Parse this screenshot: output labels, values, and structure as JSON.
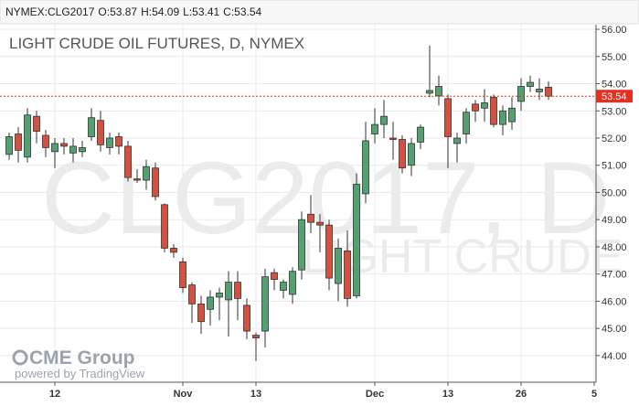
{
  "chart_data": {
    "type": "candlestick",
    "header": {
      "symbol": "NYMEX:CLG2017",
      "ohlc": [
        {
          "label": "O:",
          "value": 53.87
        },
        {
          "label": "H:",
          "value": 54.09
        },
        {
          "label": "L:",
          "value": 53.41
        },
        {
          "label": "C:",
          "value": 53.54
        }
      ]
    },
    "title": "LIGHT CRUDE OIL FUTURES, D, NYMEX",
    "watermark": [
      "CLG2017, D",
      "LIGHT CRUDE"
    ],
    "branding": [
      "CME Group",
      "powered by TradingView"
    ],
    "up_color": "#53a071",
    "down_color": "#d5503e",
    "xlim": [
      -1,
      64.2
    ],
    "xticks": [
      {
        "value": 5,
        "label": "12"
      },
      {
        "value": 19,
        "label": "Nov"
      },
      {
        "value": 27,
        "label": "13"
      },
      {
        "value": 40,
        "label": "Dec"
      },
      {
        "value": 48,
        "label": "13"
      },
      {
        "value": 56,
        "label": "26"
      },
      {
        "value": 64,
        "label": "5"
      }
    ],
    "ylim": [
      43.02,
      56.17
    ],
    "yticks": [
      {
        "value": 44,
        "label": "44.00"
      },
      {
        "value": 45,
        "label": "45.00"
      },
      {
        "value": 46,
        "label": "46.00"
      },
      {
        "value": 47,
        "label": "47.00"
      },
      {
        "value": 48,
        "label": "48.00"
      },
      {
        "value": 49,
        "label": "49.00"
      },
      {
        "value": 50,
        "label": "50.00"
      },
      {
        "value": 51,
        "label": "51.00"
      },
      {
        "value": 52,
        "label": "52.00"
      },
      {
        "value": 53,
        "label": "53.00"
      },
      {
        "value": 54,
        "label": "54.00"
      },
      {
        "value": 55,
        "label": "55.00"
      },
      {
        "value": 56,
        "label": "56.00"
      }
    ],
    "grid": true,
    "last_price": 53.54,
    "last_price_color": "#e0301e",
    "series": [
      {
        "open": [
          51.4,
          52.15,
          51.3,
          52.8,
          52.1,
          51.5,
          51.8,
          51.45,
          51.5,
          52.05,
          52.65,
          51.65,
          52.05,
          51.7,
          50.5,
          50.45,
          50.9,
          49.55,
          47.95,
          47.45,
          46.6,
          45.9,
          45.7,
          46.15,
          46.05,
          46.7,
          45.85,
          44.75,
          44.9,
          47.05,
          46.4,
          46.25,
          47.15,
          49.2,
          48.9,
          48.8,
          46.65,
          47.85,
          46.2,
          49.95,
          52.15,
          52.5,
          52.0,
          51.95,
          51.0,
          51.85,
          53.65,
          53.55,
          53.45,
          51.8,
          52.15,
          53.25,
          53.1,
          53.5,
          52.5,
          52.6,
          53.35,
          53.9,
          53.7,
          53.87
        ],
        "high": [
          52.2,
          52.4,
          53.1,
          53.0,
          52.3,
          52.0,
          52.0,
          52.0,
          51.9,
          53.1,
          53.0,
          52.2,
          52.2,
          51.9,
          50.85,
          51.2,
          51.1,
          49.6,
          48.1,
          47.6,
          46.7,
          46.2,
          46.4,
          46.5,
          47.1,
          47.1,
          46.1,
          44.85,
          47.2,
          47.2,
          46.8,
          47.25,
          49.3,
          49.9,
          49.2,
          49.0,
          48.3,
          48.6,
          50.7,
          52.6,
          53.1,
          53.4,
          52.6,
          52.1,
          52.0,
          52.5,
          55.4,
          54.3,
          53.6,
          52.2,
          53.1,
          53.4,
          53.8,
          53.6,
          53.2,
          53.5,
          54.2,
          54.3,
          54.2,
          54.09
        ],
        "low": [
          51.2,
          51.1,
          51.1,
          51.8,
          51.3,
          50.9,
          51.4,
          51.1,
          51.3,
          51.9,
          51.5,
          51.4,
          51.4,
          50.4,
          50.35,
          50.1,
          49.7,
          47.8,
          47.6,
          46.3,
          45.2,
          44.8,
          45.1,
          45.3,
          44.7,
          45.3,
          44.6,
          43.8,
          44.3,
          46.4,
          46.1,
          45.9,
          46.8,
          48.5,
          47.8,
          46.4,
          46.0,
          45.8,
          46.1,
          49.6,
          51.8,
          52.0,
          51.2,
          50.7,
          50.6,
          51.6,
          53.5,
          53.2,
          50.9,
          51.1,
          51.8,
          52.6,
          52.6,
          52.4,
          52.1,
          52.3,
          53.0,
          53.7,
          53.4,
          53.41
        ],
        "close": [
          52.05,
          51.55,
          52.85,
          52.25,
          51.65,
          51.8,
          51.7,
          51.7,
          51.65,
          52.75,
          51.75,
          52.0,
          51.7,
          50.55,
          50.45,
          50.95,
          49.85,
          47.95,
          47.8,
          46.5,
          45.9,
          45.25,
          46.15,
          46.3,
          46.7,
          46.1,
          44.9,
          44.65,
          46.9,
          46.8,
          46.7,
          47.1,
          49.0,
          48.9,
          48.8,
          46.85,
          47.95,
          46.1,
          50.3,
          51.9,
          52.5,
          52.8,
          51.95,
          50.9,
          51.8,
          52.4,
          53.75,
          53.9,
          52.05,
          52.0,
          52.95,
          53.0,
          53.3,
          52.5,
          53.0,
          53.1,
          53.9,
          54.05,
          53.8,
          53.54
        ]
      }
    ]
  }
}
